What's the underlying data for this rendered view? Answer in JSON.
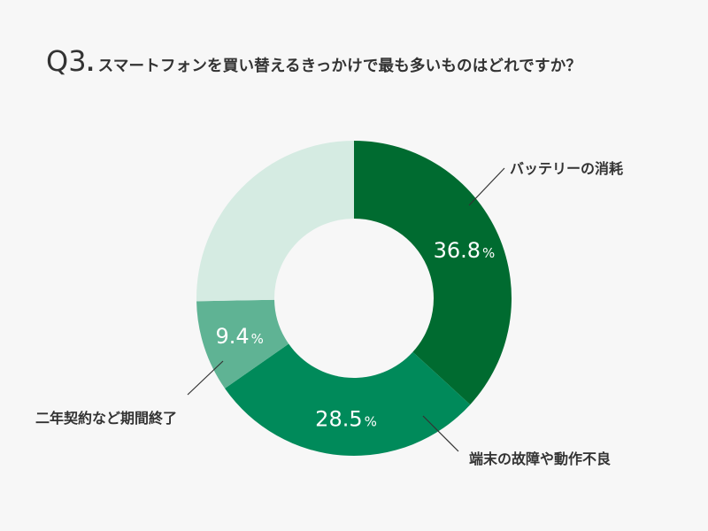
{
  "title": {
    "number": "Q3",
    "dot": ".",
    "text": "スマートフォンを買い替えるきっかけで最も多いものはどれですか？"
  },
  "chart_data": {
    "type": "pie",
    "donut": true,
    "title": "Q3.スマートフォンを買い替えるきっかけで最も多いものはどれですか？",
    "slices": [
      {
        "label": "バッテリーの消耗",
        "value": 36.8,
        "display": "36.8",
        "unit": "%",
        "color": "#006b30"
      },
      {
        "label": "端末の故障や動作不良",
        "value": 28.5,
        "display": "28.5",
        "unit": "%",
        "color": "#008a5a"
      },
      {
        "label": "二年契約など期間終了",
        "value": 9.4,
        "display": "9.4",
        "unit": "%",
        "color": "#5fb394"
      },
      {
        "label": "",
        "value": 25.3,
        "display": "",
        "unit": "",
        "color": "#d5ebe2"
      }
    ]
  }
}
